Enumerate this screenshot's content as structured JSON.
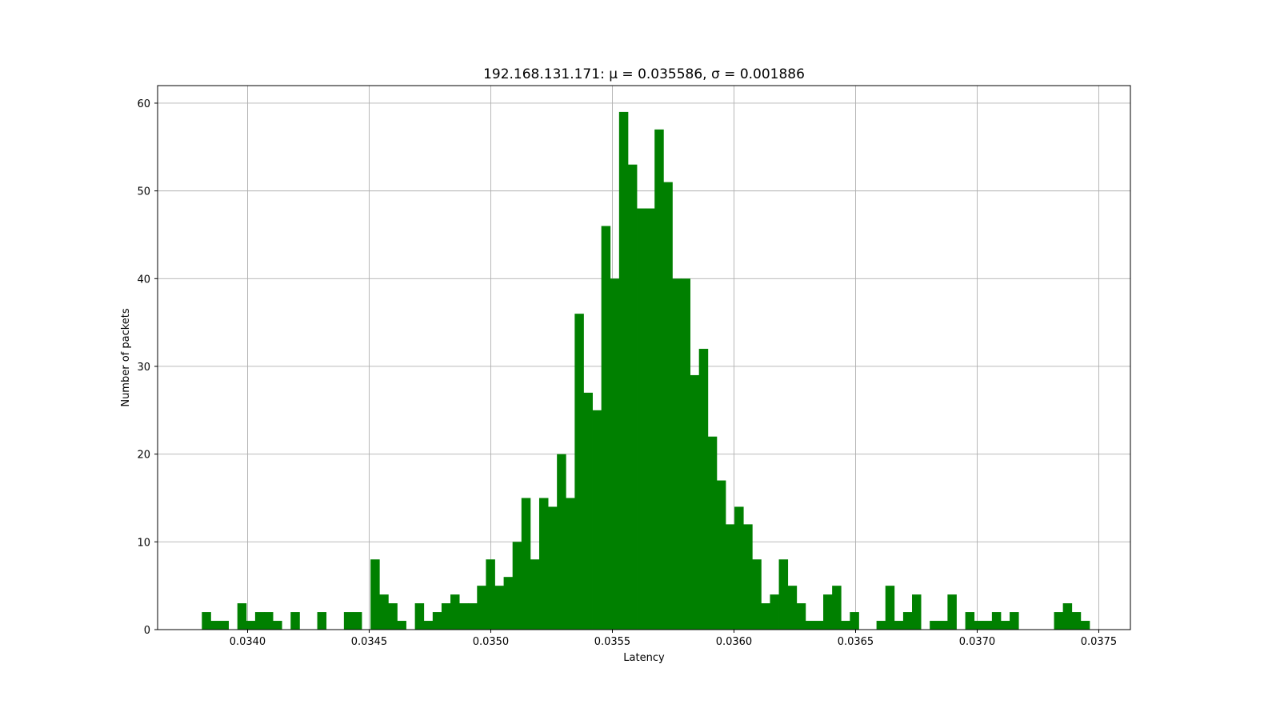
{
  "chart_data": {
    "type": "bar",
    "title": "192.168.131.171: μ = 0.035586,  σ = 0.001886",
    "xlabel": "Latency",
    "ylabel": "Number of packets",
    "xlim": [
      0.03363,
      0.03763
    ],
    "ylim": [
      0,
      62
    ],
    "grid": true,
    "bar_color": "#008000",
    "bin_start": 0.033812,
    "bin_width": 3.65e-05,
    "counts": [
      2,
      1,
      1,
      0,
      3,
      1,
      2,
      2,
      1,
      0,
      2,
      0,
      0,
      2,
      0,
      0,
      2,
      2,
      0,
      8,
      4,
      3,
      1,
      0,
      3,
      1,
      2,
      3,
      4,
      3,
      3,
      5,
      8,
      5,
      6,
      10,
      15,
      8,
      15,
      14,
      20,
      15,
      36,
      27,
      25,
      46,
      40,
      59,
      53,
      48,
      48,
      57,
      51,
      40,
      40,
      29,
      32,
      22,
      17,
      12,
      14,
      12,
      8,
      3,
      4,
      8,
      5,
      3,
      1,
      1,
      4,
      5,
      1,
      2,
      0,
      0,
      1,
      5,
      1,
      2,
      4,
      0,
      1,
      1,
      4,
      0,
      2,
      1,
      1,
      2,
      1,
      2,
      0,
      0,
      0,
      0,
      2,
      3,
      2,
      1
    ],
    "x_ticks": [
      {
        "value": 0.034,
        "label": "0.0340"
      },
      {
        "value": 0.0345,
        "label": "0.0345"
      },
      {
        "value": 0.035,
        "label": "0.0350"
      },
      {
        "value": 0.0355,
        "label": "0.0355"
      },
      {
        "value": 0.036,
        "label": "0.0360"
      },
      {
        "value": 0.0365,
        "label": "0.0365"
      },
      {
        "value": 0.037,
        "label": "0.0370"
      },
      {
        "value": 0.0375,
        "label": "0.0375"
      }
    ],
    "y_ticks": [
      {
        "value": 0,
        "label": "0"
      },
      {
        "value": 10,
        "label": "10"
      },
      {
        "value": 20,
        "label": "20"
      },
      {
        "value": 30,
        "label": "30"
      },
      {
        "value": 40,
        "label": "40"
      },
      {
        "value": 50,
        "label": "50"
      },
      {
        "value": 60,
        "label": "60"
      }
    ]
  }
}
